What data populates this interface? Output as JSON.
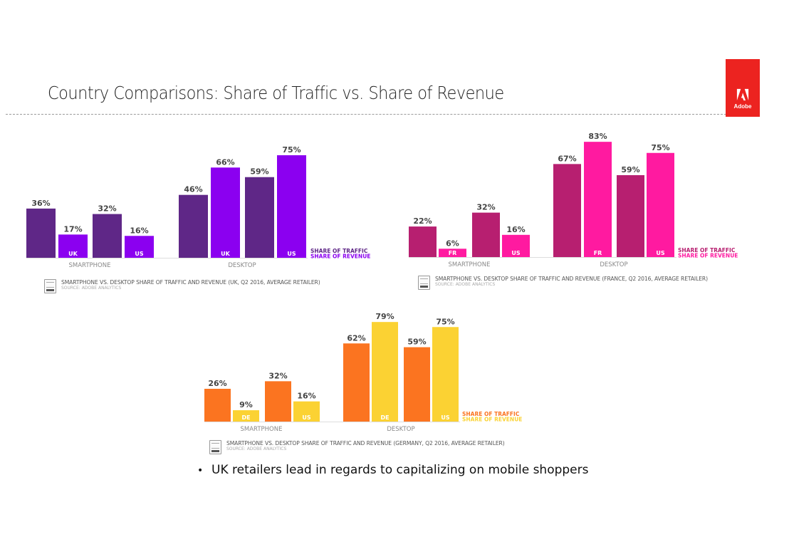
{
  "slide": {
    "title": "Country Comparisons: Share of Traffic vs. Share of Revenue",
    "logo": {
      "icon": "adobe-logo-icon",
      "text": "Adobe",
      "color": "#ec2320"
    },
    "bullet": "UK retailers lead in regards to capitalizing on mobile shoppers"
  },
  "chart_data": [
    {
      "type": "bar",
      "title": "",
      "caption": "SMARTPHONE VS. DESKTOP SHARE OF TRAFFIC AND REVENUE (UK, Q2 2016, AVERAGE RETAILER)",
      "source": "SOURCE: ADOBE ANALYTICS",
      "groups": [
        "SMARTPHONE",
        "DESKTOP"
      ],
      "countries": [
        "UK",
        "US"
      ],
      "series": [
        {
          "name": "SHARE OF TRAFFIC",
          "color": "#5f2787",
          "values": {
            "SMARTPHONE": [
              36,
              32
            ],
            "DESKTOP": [
              46,
              59
            ]
          }
        },
        {
          "name": "SHARE OF REVENUE",
          "color": "#8b00f0",
          "values": {
            "SMARTPHONE": [
              17,
              16
            ],
            "DESKTOP": [
              66,
              75
            ]
          }
        }
      ],
      "value_suffix": "%",
      "ylim": [
        0,
        100
      ],
      "grid": false,
      "legend": "bottom-right"
    },
    {
      "type": "bar",
      "title": "",
      "caption": "SMARTPHONE VS. DESKTOP SHARE OF TRAFFIC AND REVENUE (FRANCE, Q2 2016, AVERAGE RETAILER)",
      "source": "SOURCE: ADOBE ANALYTICS",
      "groups": [
        "SMARTPHONE",
        "DESKTOP"
      ],
      "countries": [
        "FR",
        "US"
      ],
      "series": [
        {
          "name": "SHARE OF TRAFFIC",
          "color": "#b71f70",
          "values": {
            "SMARTPHONE": [
              22,
              32
            ],
            "DESKTOP": [
              67,
              59
            ]
          }
        },
        {
          "name": "SHARE OF REVENUE",
          "color": "#ff1aa0",
          "values": {
            "SMARTPHONE": [
              6,
              16
            ],
            "DESKTOP": [
              83,
              75
            ]
          }
        }
      ],
      "value_suffix": "%",
      "ylim": [
        0,
        100
      ],
      "grid": false,
      "legend": "bottom-right"
    },
    {
      "type": "bar",
      "title": "",
      "caption": "SMARTPHONE VS. DESKTOP SHARE OF TRAFFIC AND REVENUE (GERMANY, Q2 2016, AVERAGE RETAILER)",
      "source": "SOURCE: ADOBE ANALYTICS",
      "groups": [
        "SMARTPHONE",
        "DESKTOP"
      ],
      "countries": [
        "DE",
        "US"
      ],
      "series": [
        {
          "name": "SHARE OF TRAFFIC",
          "color": "#fb7420",
          "values": {
            "SMARTPHONE": [
              26,
              32
            ],
            "DESKTOP": [
              62,
              59
            ]
          }
        },
        {
          "name": "SHARE OF REVENUE",
          "color": "#fbd233",
          "values": {
            "SMARTPHONE": [
              9,
              16
            ],
            "DESKTOP": [
              79,
              75
            ]
          }
        }
      ],
      "value_suffix": "%",
      "ylim": [
        0,
        100
      ],
      "grid": false,
      "legend": "bottom-right"
    }
  ]
}
